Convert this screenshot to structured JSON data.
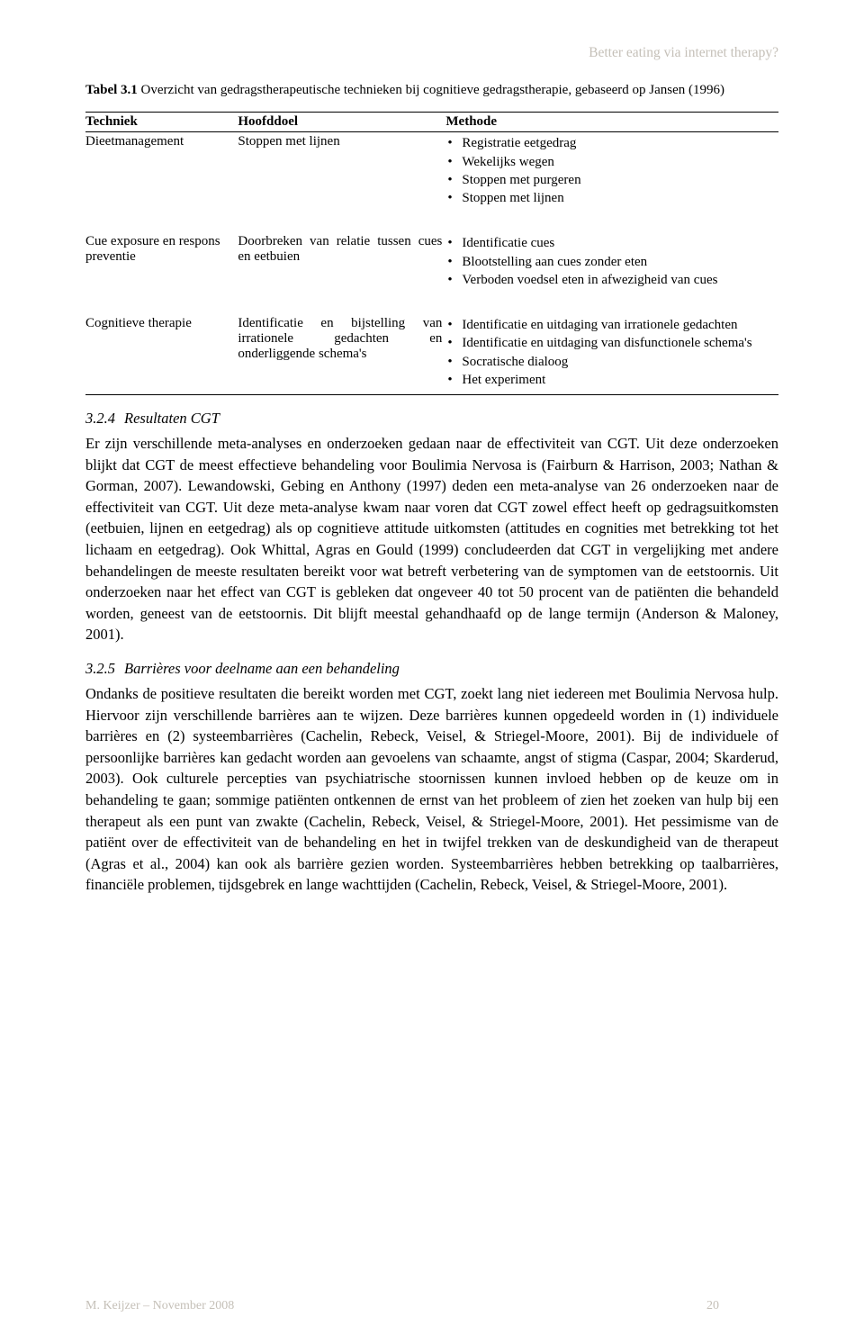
{
  "running_header": "Better eating via internet therapy?",
  "table_caption_label": "Tabel 3.1",
  "table_caption_text": " Overzicht van gedragstherapeutische technieken bij cognitieve gedragstherapie, gebaseerd op Jansen (1996)",
  "headers": {
    "c1": "Techniek",
    "c2": "Hoofddoel",
    "c3": "Methode"
  },
  "rows": [
    {
      "tech": "Dieetmanagement",
      "goal": "Stoppen met lijnen",
      "methods": [
        "Registratie eetgedrag",
        "Wekelijks wegen",
        "Stoppen met purgeren",
        "Stoppen met lijnen"
      ]
    },
    {
      "tech": "Cue exposure en respons preventie",
      "goal": "Doorbreken van relatie tussen cues en eetbuien",
      "methods": [
        "Identificatie cues",
        "Blootstelling aan cues zonder eten",
        "Verboden voedsel eten in afwezigheid van cues"
      ]
    },
    {
      "tech": "Cognitieve therapie",
      "goal": "Identificatie en bijstelling van irrationele gedachten en onderliggende schema's",
      "methods": [
        "Identificatie en uitdaging van irrationele gedachten",
        "Identificatie en uitdaging van disfunctionele schema's",
        "Socratische dialoog",
        "Het experiment"
      ]
    }
  ],
  "sub324_num": "3.2.4",
  "sub324_title": "Resultaten CGT",
  "para324": "Er zijn verschillende meta-analyses en onderzoeken gedaan naar de effectiviteit van CGT. Uit deze onderzoeken blijkt dat CGT de meest effectieve behandeling voor Boulimia Nervosa is (Fairburn & Harrison, 2003; Nathan & Gorman, 2007). Lewandowski, Gebing en Anthony (1997) deden een meta-analyse van 26 onderzoeken naar de effectiviteit van CGT. Uit deze meta-analyse kwam naar voren dat CGT zowel effect heeft op gedragsuitkomsten (eetbuien, lijnen en eetgedrag) als op cognitieve attitude uitkomsten (attitudes en cognities met betrekking tot het lichaam en eetgedrag). Ook Whittal, Agras en Gould (1999) concludeerden dat CGT in vergelijking met andere behandelingen de meeste resultaten bereikt voor wat betreft verbetering van de symptomen van de eetstoornis. Uit onderzoeken naar het effect van CGT is gebleken dat ongeveer 40 tot 50 procent van de patiënten die behandeld worden, geneest van de eetstoornis. Dit blijft meestal gehandhaafd op de lange termijn (Anderson & Maloney, 2001).",
  "sub325_num": "3.2.5",
  "sub325_title": "Barrières voor deelname aan een behandeling",
  "para325": "Ondanks de positieve resultaten die bereikt worden met CGT, zoekt lang niet iedereen met Boulimia Nervosa hulp. Hiervoor zijn verschillende barrières aan te wijzen. Deze barrières kunnen opgedeeld worden in (1) individuele barrières en (2) systeembarrières (Cachelin, Rebeck, Veisel, & Striegel-Moore, 2001). Bij de individuele of persoonlijke barrières kan gedacht worden aan gevoelens van schaamte, angst of stigma (Caspar, 2004; Skarderud, 2003). Ook culturele percepties van psychiatrische stoornissen kunnen invloed hebben op de keuze om in behandeling te gaan; sommige patiënten ontkennen de ernst van het probleem of zien het zoeken van hulp bij een therapeut als een punt van zwakte (Cachelin, Rebeck, Veisel, & Striegel-Moore, 2001). Het pessimisme van de patiënt over de effectiviteit van de behandeling en het in twijfel trekken van de deskundigheid van de therapeut (Agras et al., 2004) kan ook als barrière gezien worden. Systeembarrières hebben betrekking op taalbarrières, financiële problemen, tijdsgebrek en lange wachttijden (Cachelin, Rebeck, Veisel, & Striegel-Moore, 2001).",
  "footer_text": "M. Keijzer – November 2008",
  "page_number": "20"
}
